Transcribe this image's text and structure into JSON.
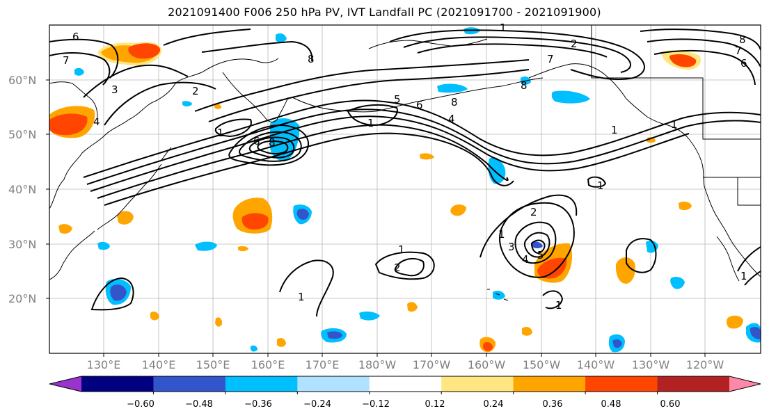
{
  "title": "2021091400 F006 250 hPa PV, IVT Landfall PC (2021091700 - 2021091900)",
  "map": {
    "lat_labels": [
      "60°N",
      "50°N",
      "40°N",
      "30°N",
      "20°N"
    ],
    "lon_labels": [
      "130°E",
      "140°E",
      "150°E",
      "160°E",
      "170°E",
      "180°W",
      "170°W",
      "160°W",
      "150°W",
      "140°W",
      "130°W",
      "120°W"
    ],
    "contour_labels": [
      "1",
      "2",
      "3",
      "4",
      "5",
      "6",
      "7",
      "8"
    ]
  },
  "colorbar": {
    "colors": [
      "#9933cc",
      "#000080",
      "#3355cc",
      "#00bfff",
      "#b0e2ff",
      "#ffffff",
      "#ffe680",
      "#ffa500",
      "#ff4500",
      "#b22222",
      "#ff88aa"
    ],
    "tick_labels": [
      "−0.60",
      "−0.48",
      "−0.36",
      "−0.24",
      "−0.12",
      "0.12",
      "0.24",
      "0.36",
      "0.48",
      "0.60"
    ]
  },
  "chart_data": {
    "type": "heatmap",
    "title": "2021091400 F006 250 hPa PV, IVT Landfall PC (2021091700 - 2021091900)",
    "domain": {
      "lon_range": [
        "120°E",
        "130°W→110°W"
      ],
      "lat_range": [
        10,
        70
      ]
    },
    "contour_field": "250 hPa PV (PVU), black contours",
    "contour_levels": [
      1,
      2,
      3,
      4,
      5,
      6,
      7,
      8
    ],
    "shaded_field": "IVT Landfall PC",
    "color_levels": [
      -0.6,
      -0.48,
      -0.36,
      -0.24,
      -0.12,
      0.12,
      0.24,
      0.36,
      0.48,
      0.6
    ],
    "colorbar_extend": "both",
    "grid": true
  }
}
